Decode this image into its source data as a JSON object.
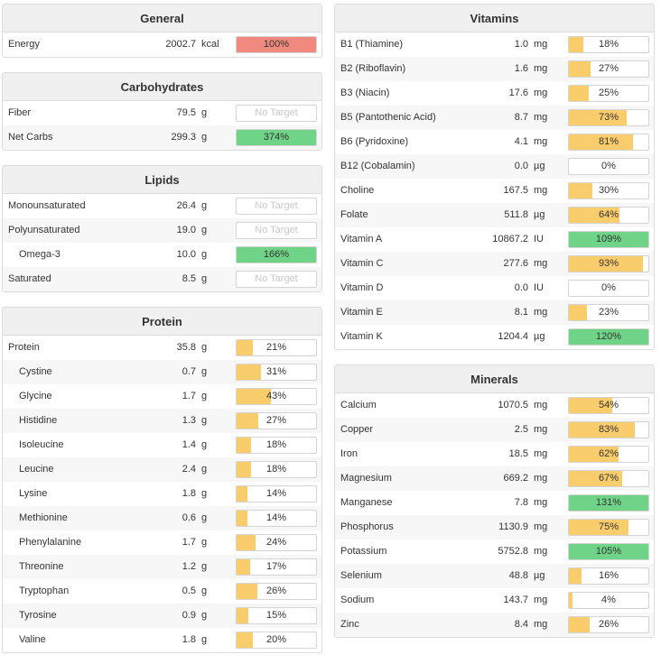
{
  "colors": {
    "red": "#f08a7e",
    "green": "#6fd488",
    "yellow": "#f9cc6c",
    "no_target_text": "#c8c8c8"
  },
  "no_target_label": "No Target",
  "left_panels": [
    {
      "title": "General",
      "rows": [
        {
          "name": "Energy",
          "amount": "2002.7",
          "unit": "kcal",
          "pct": "100%",
          "fraction": 1.0,
          "color": "red"
        }
      ]
    },
    {
      "title": "Carbohydrates",
      "rows": [
        {
          "name": "Fiber",
          "amount": "79.5",
          "unit": "g",
          "pct": "",
          "fraction": 0,
          "color": "none"
        },
        {
          "name": "Net Carbs",
          "amount": "299.3",
          "unit": "g",
          "pct": "374%",
          "fraction": 1.0,
          "color": "green"
        }
      ]
    },
    {
      "title": "Lipids",
      "rows": [
        {
          "name": "Monounsaturated",
          "amount": "26.4",
          "unit": "g",
          "pct": "",
          "fraction": 0,
          "color": "none"
        },
        {
          "name": "Polyunsaturated",
          "amount": "19.0",
          "unit": "g",
          "pct": "",
          "fraction": 0,
          "color": "none"
        },
        {
          "name": "Omega-3",
          "amount": "10.0",
          "unit": "g",
          "pct": "166%",
          "fraction": 1.0,
          "color": "green",
          "sub": true
        },
        {
          "name": "Saturated",
          "amount": "8.5",
          "unit": "g",
          "pct": "",
          "fraction": 0,
          "color": "none"
        }
      ]
    },
    {
      "title": "Protein",
      "rows": [
        {
          "name": "Protein",
          "amount": "35.8",
          "unit": "g",
          "pct": "21%",
          "fraction": 0.21,
          "color": "yellow"
        },
        {
          "name": "Cystine",
          "amount": "0.7",
          "unit": "g",
          "pct": "31%",
          "fraction": 0.31,
          "color": "yellow",
          "sub": true
        },
        {
          "name": "Glycine",
          "amount": "1.7",
          "unit": "g",
          "pct": "43%",
          "fraction": 0.43,
          "color": "yellow",
          "sub": true
        },
        {
          "name": "Histidine",
          "amount": "1.3",
          "unit": "g",
          "pct": "27%",
          "fraction": 0.27,
          "color": "yellow",
          "sub": true
        },
        {
          "name": "Isoleucine",
          "amount": "1.4",
          "unit": "g",
          "pct": "18%",
          "fraction": 0.18,
          "color": "yellow",
          "sub": true
        },
        {
          "name": "Leucine",
          "amount": "2.4",
          "unit": "g",
          "pct": "18%",
          "fraction": 0.18,
          "color": "yellow",
          "sub": true
        },
        {
          "name": "Lysine",
          "amount": "1.8",
          "unit": "g",
          "pct": "14%",
          "fraction": 0.14,
          "color": "yellow",
          "sub": true
        },
        {
          "name": "Methionine",
          "amount": "0.6",
          "unit": "g",
          "pct": "14%",
          "fraction": 0.14,
          "color": "yellow",
          "sub": true
        },
        {
          "name": "Phenylalanine",
          "amount": "1.7",
          "unit": "g",
          "pct": "24%",
          "fraction": 0.24,
          "color": "yellow",
          "sub": true
        },
        {
          "name": "Threonine",
          "amount": "1.2",
          "unit": "g",
          "pct": "17%",
          "fraction": 0.17,
          "color": "yellow",
          "sub": true
        },
        {
          "name": "Tryptophan",
          "amount": "0.5",
          "unit": "g",
          "pct": "26%",
          "fraction": 0.26,
          "color": "yellow",
          "sub": true
        },
        {
          "name": "Tyrosine",
          "amount": "0.9",
          "unit": "g",
          "pct": "15%",
          "fraction": 0.15,
          "color": "yellow",
          "sub": true
        },
        {
          "name": "Valine",
          "amount": "1.8",
          "unit": "g",
          "pct": "20%",
          "fraction": 0.2,
          "color": "yellow",
          "sub": true
        }
      ]
    }
  ],
  "right_panels": [
    {
      "title": "Vitamins",
      "rows": [
        {
          "name": "B1 (Thiamine)",
          "amount": "1.0",
          "unit": "mg",
          "pct": "18%",
          "fraction": 0.18,
          "color": "yellow"
        },
        {
          "name": "B2 (Riboflavin)",
          "amount": "1.6",
          "unit": "mg",
          "pct": "27%",
          "fraction": 0.27,
          "color": "yellow"
        },
        {
          "name": "B3 (Niacin)",
          "amount": "17.6",
          "unit": "mg",
          "pct": "25%",
          "fraction": 0.25,
          "color": "yellow"
        },
        {
          "name": "B5 (Pantothenic Acid)",
          "amount": "8.7",
          "unit": "mg",
          "pct": "73%",
          "fraction": 0.73,
          "color": "yellow"
        },
        {
          "name": "B6 (Pyridoxine)",
          "amount": "4.1",
          "unit": "mg",
          "pct": "81%",
          "fraction": 0.81,
          "color": "yellow"
        },
        {
          "name": "B12 (Cobalamin)",
          "amount": "0.0",
          "unit": "µg",
          "pct": "0%",
          "fraction": 0,
          "color": "yellow"
        },
        {
          "name": "Choline",
          "amount": "167.5",
          "unit": "mg",
          "pct": "30%",
          "fraction": 0.3,
          "color": "yellow"
        },
        {
          "name": "Folate",
          "amount": "511.8",
          "unit": "µg",
          "pct": "64%",
          "fraction": 0.64,
          "color": "yellow"
        },
        {
          "name": "Vitamin A",
          "amount": "10867.2",
          "unit": "IU",
          "pct": "109%",
          "fraction": 1.0,
          "color": "green"
        },
        {
          "name": "Vitamin C",
          "amount": "277.6",
          "unit": "mg",
          "pct": "93%",
          "fraction": 0.93,
          "color": "yellow"
        },
        {
          "name": "Vitamin D",
          "amount": "0.0",
          "unit": "IU",
          "pct": "0%",
          "fraction": 0,
          "color": "yellow"
        },
        {
          "name": "Vitamin E",
          "amount": "8.1",
          "unit": "mg",
          "pct": "23%",
          "fraction": 0.23,
          "color": "yellow"
        },
        {
          "name": "Vitamin K",
          "amount": "1204.4",
          "unit": "µg",
          "pct": "120%",
          "fraction": 1.0,
          "color": "green"
        }
      ]
    },
    {
      "title": "Minerals",
      "rows": [
        {
          "name": "Calcium",
          "amount": "1070.5",
          "unit": "mg",
          "pct": "54%",
          "fraction": 0.54,
          "color": "yellow"
        },
        {
          "name": "Copper",
          "amount": "2.5",
          "unit": "mg",
          "pct": "83%",
          "fraction": 0.83,
          "color": "yellow"
        },
        {
          "name": "Iron",
          "amount": "18.5",
          "unit": "mg",
          "pct": "62%",
          "fraction": 0.62,
          "color": "yellow"
        },
        {
          "name": "Magnesium",
          "amount": "669.2",
          "unit": "mg",
          "pct": "67%",
          "fraction": 0.67,
          "color": "yellow"
        },
        {
          "name": "Manganese",
          "amount": "7.8",
          "unit": "mg",
          "pct": "131%",
          "fraction": 1.0,
          "color": "green"
        },
        {
          "name": "Phosphorus",
          "amount": "1130.9",
          "unit": "mg",
          "pct": "75%",
          "fraction": 0.75,
          "color": "yellow"
        },
        {
          "name": "Potassium",
          "amount": "5752.8",
          "unit": "mg",
          "pct": "105%",
          "fraction": 1.0,
          "color": "green"
        },
        {
          "name": "Selenium",
          "amount": "48.8",
          "unit": "µg",
          "pct": "16%",
          "fraction": 0.16,
          "color": "yellow"
        },
        {
          "name": "Sodium",
          "amount": "143.7",
          "unit": "mg",
          "pct": "4%",
          "fraction": 0.04,
          "color": "yellow"
        },
        {
          "name": "Zinc",
          "amount": "8.4",
          "unit": "mg",
          "pct": "26%",
          "fraction": 0.26,
          "color": "yellow"
        }
      ]
    }
  ]
}
